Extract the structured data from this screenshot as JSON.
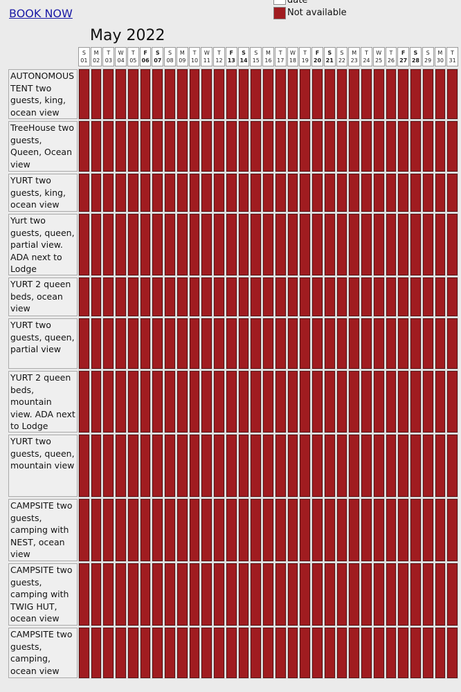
{
  "header": {
    "link": "BOOK NOW",
    "legend": [
      {
        "label": "date",
        "color": "#ffffff"
      },
      {
        "label": "Not available",
        "color": "#a01c20"
      }
    ]
  },
  "calendar": {
    "month": "May 2022",
    "days": [
      {
        "letter": "S",
        "num": "01",
        "bold": false
      },
      {
        "letter": "M",
        "num": "02",
        "bold": false
      },
      {
        "letter": "T",
        "num": "03",
        "bold": false
      },
      {
        "letter": "W",
        "num": "04",
        "bold": false
      },
      {
        "letter": "T",
        "num": "05",
        "bold": false
      },
      {
        "letter": "F",
        "num": "06",
        "bold": true
      },
      {
        "letter": "S",
        "num": "07",
        "bold": true
      },
      {
        "letter": "S",
        "num": "08",
        "bold": false
      },
      {
        "letter": "M",
        "num": "09",
        "bold": false
      },
      {
        "letter": "T",
        "num": "10",
        "bold": false
      },
      {
        "letter": "W",
        "num": "11",
        "bold": false
      },
      {
        "letter": "T",
        "num": "12",
        "bold": false
      },
      {
        "letter": "F",
        "num": "13",
        "bold": true
      },
      {
        "letter": "S",
        "num": "14",
        "bold": true
      },
      {
        "letter": "S",
        "num": "15",
        "bold": false
      },
      {
        "letter": "M",
        "num": "16",
        "bold": false
      },
      {
        "letter": "T",
        "num": "17",
        "bold": false
      },
      {
        "letter": "W",
        "num": "18",
        "bold": false
      },
      {
        "letter": "T",
        "num": "19",
        "bold": false
      },
      {
        "letter": "F",
        "num": "20",
        "bold": true
      },
      {
        "letter": "S",
        "num": "21",
        "bold": true
      },
      {
        "letter": "S",
        "num": "22",
        "bold": false
      },
      {
        "letter": "M",
        "num": "23",
        "bold": false
      },
      {
        "letter": "T",
        "num": "24",
        "bold": false
      },
      {
        "letter": "W",
        "num": "25",
        "bold": false
      },
      {
        "letter": "T",
        "num": "26",
        "bold": false
      },
      {
        "letter": "F",
        "num": "27",
        "bold": true
      },
      {
        "letter": "S",
        "num": "28",
        "bold": true
      },
      {
        "letter": "S",
        "num": "29",
        "bold": false
      },
      {
        "letter": "M",
        "num": "30",
        "bold": false
      },
      {
        "letter": "T",
        "num": "31",
        "bold": false
      }
    ],
    "rooms": [
      "AUTONOMOUS TENT two guests, king, ocean view",
      "TreeHouse two guests, Queen, Ocean view",
      "YURT two guests, king, ocean view",
      "Yurt two guests, queen, partial view. ADA next to Lodge",
      "YURT 2 queen beds, ocean view",
      "YURT two guests, queen, partial view",
      "YURT 2 queen beds, mountain view. ADA next to Lodge",
      "YURT two guests, queen, mountain view",
      "CAMPSITE two guests, camping with NEST, ocean view",
      "CAMPSITE two guests, camping with TWIG HUT, ocean view",
      "CAMPSITE two guests, camping, ocean view"
    ]
  }
}
